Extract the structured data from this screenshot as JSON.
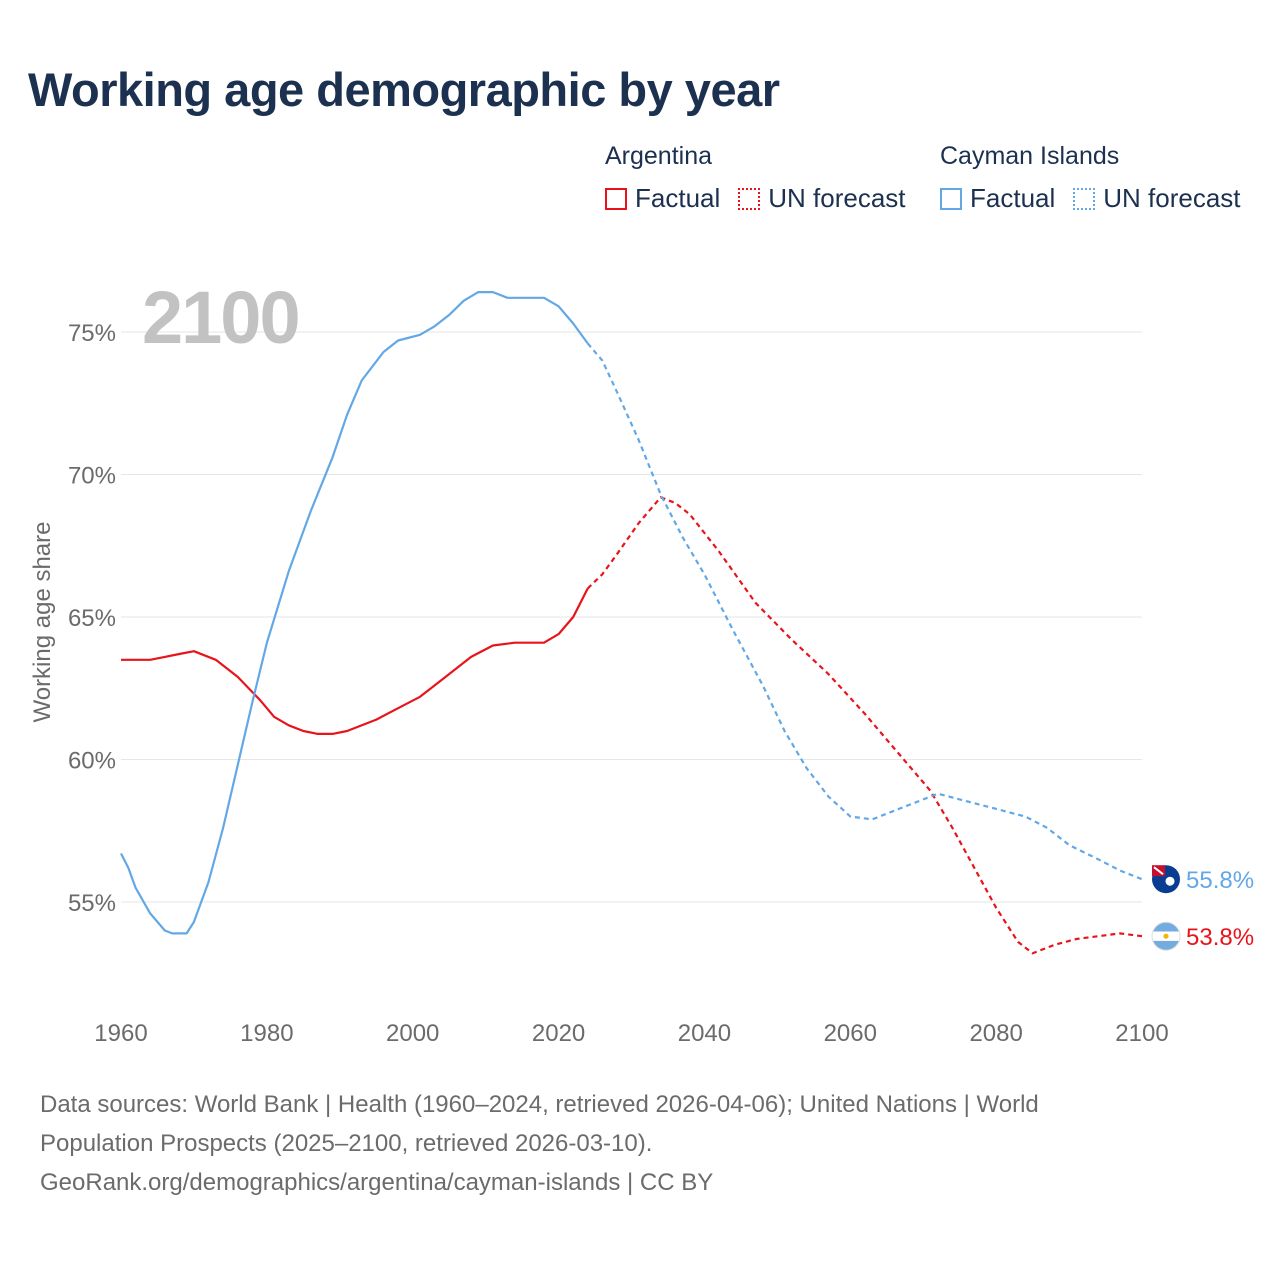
{
  "title": "Working age demographic by year",
  "legend": {
    "groups": [
      {
        "name": "Argentina",
        "color": "#e8141b",
        "factual_label": "Factual",
        "forecast_label": "UN forecast"
      },
      {
        "name": "Cayman Islands",
        "color": "#63a8e6",
        "factual_label": "Factual",
        "forecast_label": "UN forecast"
      }
    ]
  },
  "year_watermark": "2100",
  "footer": {
    "line1": "Data sources: World Bank | Health (1960–2024, retrieved 2026-04-06); United Nations | World",
    "line2": "Population Prospects (2025–2100, retrieved 2026-03-10).",
    "line3": "GeoRank.org/demographics/argentina/cayman-islands | CC BY"
  },
  "chart_data": {
    "type": "line",
    "title": "Working age demographic by year",
    "xlabel": "",
    "ylabel": "Working age share",
    "xlim": [
      1960,
      2100
    ],
    "ylim": [
      51.5,
      77.5
    ],
    "x_ticks": [
      1960,
      1980,
      2000,
      2020,
      2040,
      2060,
      2080,
      2100
    ],
    "x_tick_labels": [
      "1960",
      "1980",
      "2000",
      "2020",
      "2040",
      "2060",
      "2080",
      "2100"
    ],
    "y_ticks": [
      55,
      60,
      65,
      70,
      75
    ],
    "y_tick_labels": [
      "55%",
      "60%",
      "65%",
      "70%",
      "75%"
    ],
    "grid": true,
    "factual_end_year": 2024,
    "series": [
      {
        "name": "Argentina",
        "color": "#e8141b",
        "end_label": "53.8%",
        "points": [
          [
            1960,
            63.5
          ],
          [
            1964,
            63.5
          ],
          [
            1966,
            63.6
          ],
          [
            1968,
            63.7
          ],
          [
            1970,
            63.8
          ],
          [
            1973,
            63.5
          ],
          [
            1976,
            62.9
          ],
          [
            1979,
            62.1
          ],
          [
            1981,
            61.5
          ],
          [
            1983,
            61.2
          ],
          [
            1985,
            61.0
          ],
          [
            1987,
            60.9
          ],
          [
            1989,
            60.9
          ],
          [
            1991,
            61.0
          ],
          [
            1995,
            61.4
          ],
          [
            1998,
            61.8
          ],
          [
            2001,
            62.2
          ],
          [
            2004,
            62.8
          ],
          [
            2008,
            63.6
          ],
          [
            2011,
            64.0
          ],
          [
            2014,
            64.1
          ],
          [
            2018,
            64.1
          ],
          [
            2020,
            64.4
          ],
          [
            2022,
            65.0
          ],
          [
            2024,
            66.0
          ],
          [
            2026,
            66.5
          ],
          [
            2028,
            67.2
          ],
          [
            2031,
            68.3
          ],
          [
            2034,
            69.2
          ],
          [
            2036,
            69.0
          ],
          [
            2038,
            68.6
          ],
          [
            2042,
            67.3
          ],
          [
            2047,
            65.5
          ],
          [
            2052,
            64.2
          ],
          [
            2057,
            63.0
          ],
          [
            2062,
            61.6
          ],
          [
            2066,
            60.4
          ],
          [
            2071,
            58.9
          ],
          [
            2074,
            57.6
          ],
          [
            2077,
            56.2
          ],
          [
            2080,
            54.8
          ],
          [
            2083,
            53.6
          ],
          [
            2085,
            53.2
          ],
          [
            2088,
            53.5
          ],
          [
            2091,
            53.7
          ],
          [
            2094,
            53.8
          ],
          [
            2097,
            53.9
          ],
          [
            2100,
            53.8
          ]
        ]
      },
      {
        "name": "Cayman Islands",
        "color": "#63a8e6",
        "end_label": "55.8%",
        "points": [
          [
            1960,
            56.7
          ],
          [
            1961,
            56.2
          ],
          [
            1962,
            55.5
          ],
          [
            1964,
            54.6
          ],
          [
            1966,
            54.0
          ],
          [
            1967,
            53.9
          ],
          [
            1969,
            53.9
          ],
          [
            1970,
            54.3
          ],
          [
            1972,
            55.7
          ],
          [
            1974,
            57.6
          ],
          [
            1976,
            59.8
          ],
          [
            1978,
            62.0
          ],
          [
            1980,
            64.1
          ],
          [
            1983,
            66.6
          ],
          [
            1986,
            68.7
          ],
          [
            1989,
            70.6
          ],
          [
            1991,
            72.1
          ],
          [
            1993,
            73.3
          ],
          [
            1996,
            74.3
          ],
          [
            1998,
            74.7
          ],
          [
            2001,
            74.9
          ],
          [
            2003,
            75.2
          ],
          [
            2005,
            75.6
          ],
          [
            2007,
            76.1
          ],
          [
            2009,
            76.4
          ],
          [
            2011,
            76.4
          ],
          [
            2013,
            76.2
          ],
          [
            2018,
            76.2
          ],
          [
            2020,
            75.9
          ],
          [
            2022,
            75.3
          ],
          [
            2024,
            74.6
          ],
          [
            2026,
            74.0
          ],
          [
            2028,
            72.9
          ],
          [
            2031,
            71.2
          ],
          [
            2034,
            69.3
          ],
          [
            2037,
            67.8
          ],
          [
            2040,
            66.5
          ],
          [
            2044,
            64.5
          ],
          [
            2048,
            62.6
          ],
          [
            2051,
            61.0
          ],
          [
            2054,
            59.7
          ],
          [
            2057,
            58.7
          ],
          [
            2060,
            58.0
          ],
          [
            2063,
            57.9
          ],
          [
            2066,
            58.2
          ],
          [
            2069,
            58.5
          ],
          [
            2072,
            58.8
          ],
          [
            2075,
            58.6
          ],
          [
            2078,
            58.4
          ],
          [
            2081,
            58.2
          ],
          [
            2084,
            58.0
          ],
          [
            2087,
            57.6
          ],
          [
            2090,
            57.0
          ],
          [
            2094,
            56.5
          ],
          [
            2097,
            56.1
          ],
          [
            2100,
            55.8
          ]
        ]
      }
    ]
  }
}
